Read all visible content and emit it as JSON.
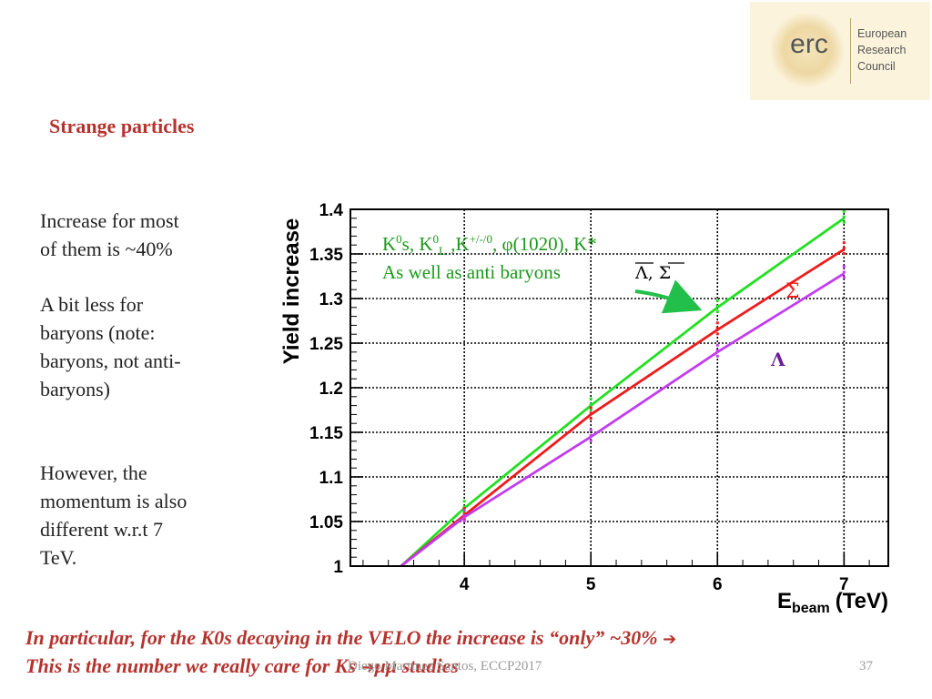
{
  "logo": {
    "mark": "erc",
    "lines": [
      "European",
      "Research",
      "Council"
    ]
  },
  "slide": {
    "title": "Strange particles",
    "paragraph1": [
      "Increase for  most",
      "of them is ~40%"
    ],
    "paragraph2": [
      "A bit less for",
      "baryons (note:",
      "baryons, not anti-",
      "baryons)"
    ],
    "paragraph3": [
      "However, the",
      "momentum is also",
      "different w.r.t 7",
      "TeV."
    ],
    "footnote_line1": "In particular, for the K0s decaying in the VELO the increase is “only” ~30%",
    "footnote_arrow1": "➔",
    "footnote_line2_part1": "This is the number we really care for Ks ",
    "footnote_arrow2": "➔",
    "footnote_line2_part2": "μμ studies",
    "footer_author": "Diego Martinez Santos, ECCP2017",
    "page_number": "37"
  },
  "chart_data": {
    "type": "line",
    "title": "",
    "xlabel_main": "E",
    "xlabel_sub": "beam",
    "xlabel_unit": "(TeV)",
    "ylabel": "Yield increase",
    "xlim": [
      3.1,
      7.35
    ],
    "ylim": [
      1.0,
      1.4
    ],
    "xticks": [
      4,
      5,
      6,
      7
    ],
    "yticks": [
      1,
      1.05,
      1.1,
      1.15,
      1.2,
      1.25,
      1.3,
      1.35,
      1.4
    ],
    "ytick_labels": [
      "1",
      "1.05",
      "1.1",
      "1.15",
      "1.2",
      "1.25",
      "1.3",
      "1.35",
      "1.4"
    ],
    "grid": true,
    "series": [
      {
        "name": "mesons and anti-baryons",
        "color": "#22e022",
        "x": [
          3.5,
          4,
          5,
          6,
          7
        ],
        "y": [
          1.0,
          1.065,
          1.18,
          1.29,
          1.39
        ]
      },
      {
        "name": "Sigma",
        "color": "#ee1c1c",
        "x": [
          3.5,
          4,
          5,
          6,
          7
        ],
        "y": [
          1.0,
          1.057,
          1.17,
          1.265,
          1.355
        ]
      },
      {
        "name": "Lambda",
        "color": "#c23cf0",
        "x": [
          3.5,
          4,
          5,
          6,
          7
        ],
        "y": [
          1.0,
          1.055,
          1.145,
          1.24,
          1.328
        ]
      }
    ],
    "annotations": {
      "green_line1_parts": [
        "K",
        "0",
        "s, K",
        "0",
        "L",
        " ,K",
        "+/-/0",
        ", φ(1020),  K*"
      ],
      "green_line2": "As well as anti baryons",
      "antibaryons": "Λ, Σ",
      "sigma_label": "Σ",
      "lambda_label": "Λ",
      "green_color": "#1c9a1c",
      "sigma_color": "#ee1c1c",
      "lambda_color": "#6a1c9a"
    }
  }
}
